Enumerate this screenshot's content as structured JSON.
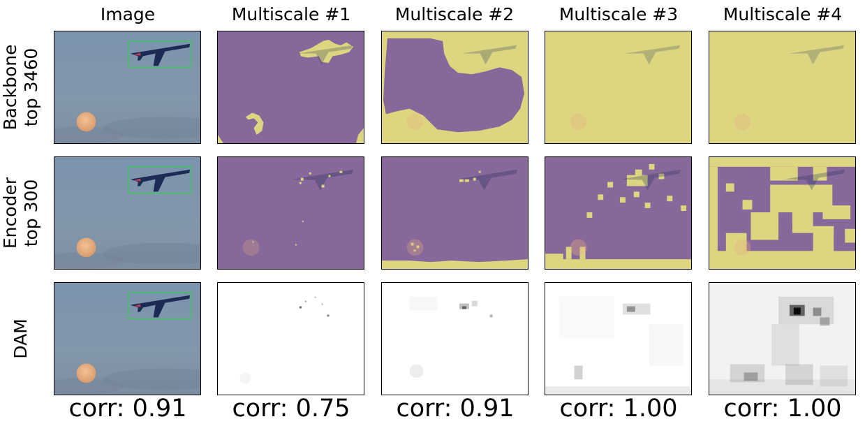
{
  "columns": [
    "Image",
    "Multiscale #1",
    "Multiscale #2",
    "Multiscale #3",
    "Multiscale #4"
  ],
  "rows": [
    {
      "label_line1": "Backbone",
      "label_line2": "top 3460"
    },
    {
      "label_line1": "Encoder",
      "label_line2": "top 300"
    },
    {
      "label_line1": "DAM",
      "label_line2": ""
    }
  ],
  "correlations": [
    "corr: 0.91",
    "corr: 0.75",
    "corr: 0.91",
    "corr: 1.00",
    "corr: 1.00"
  ],
  "colors": {
    "sky": "#7f95ad",
    "mask_purple": "#86689a",
    "mask_yellow": "#dcd681",
    "bbox": "#2fd14a",
    "plane": "#1d2a55",
    "moon": "#e8b07e"
  }
}
